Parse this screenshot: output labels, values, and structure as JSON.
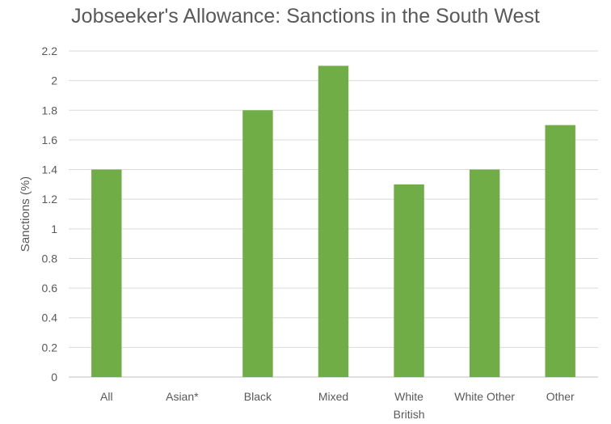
{
  "chart_data": {
    "type": "bar",
    "title": "Jobseeker's Allowance: Sanctions in the South West",
    "xlabel": "",
    "ylabel": "Sanctions (%)",
    "ylim": [
      0,
      2.2
    ],
    "ytick_step": 0.2,
    "ytick_labels": [
      "0",
      "0.2",
      "0.4",
      "0.6",
      "0.8",
      "1",
      "1.2",
      "1.4",
      "1.6",
      "1.8",
      "2",
      "2.2"
    ],
    "grid": true,
    "legend": "none",
    "bar_color": "#70ad47",
    "categories": [
      [
        "All"
      ],
      [
        "Asian*"
      ],
      [
        "Black"
      ],
      [
        "Mixed"
      ],
      [
        "White",
        "British"
      ],
      [
        "White Other"
      ],
      [
        "Other"
      ]
    ],
    "values": [
      1.4,
      null,
      1.8,
      2.1,
      1.3,
      1.4,
      1.7
    ]
  }
}
